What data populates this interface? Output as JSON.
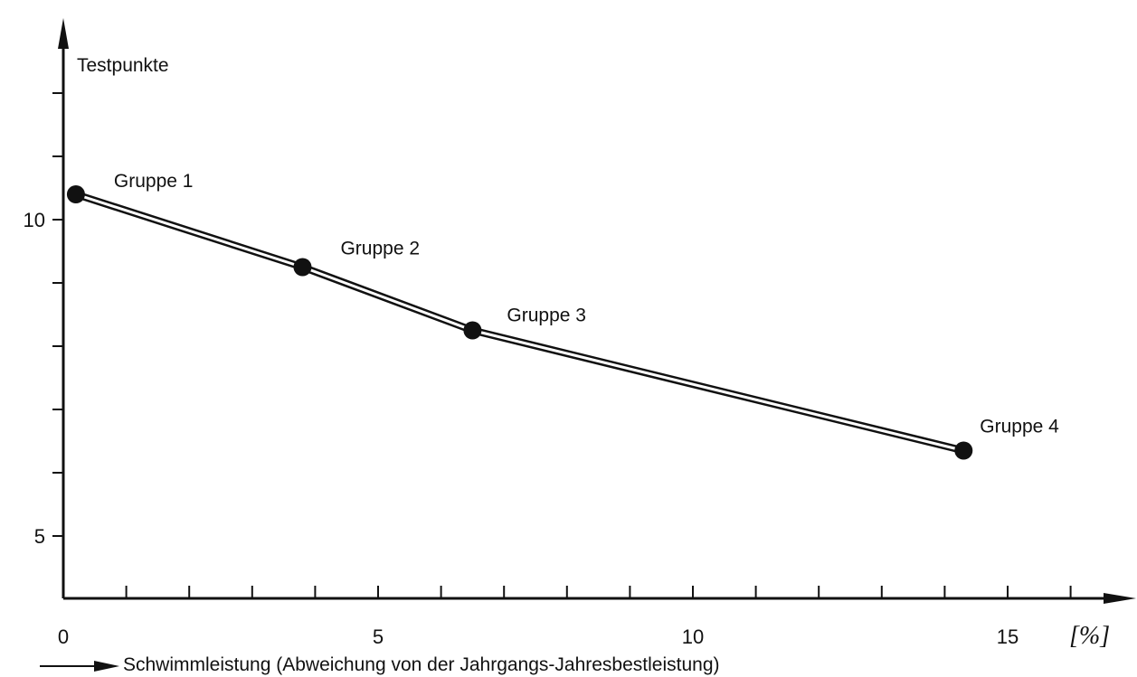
{
  "chart_data": {
    "type": "line",
    "title": "",
    "ylabel": "Testpunkte",
    "xlabel": "Schwimmleistung (Abweichung von der Jahrgangs-Jahresbestleistung)",
    "x_unit": "[%]",
    "xlim": [
      0,
      16.5
    ],
    "ylim": [
      4.5,
      13.2
    ],
    "x_tick_labels": [
      {
        "value": 0,
        "label": "0"
      },
      {
        "value": 5,
        "label": "5"
      },
      {
        "value": 10,
        "label": "10"
      },
      {
        "value": 15,
        "label": "15"
      }
    ],
    "x_minor_ticks": [
      1,
      2,
      3,
      4,
      5,
      6,
      7,
      8,
      9,
      10,
      11,
      12,
      13,
      14,
      15,
      16
    ],
    "y_tick_labels": [
      {
        "value": 5,
        "label": "5"
      },
      {
        "value": 10,
        "label": "10"
      }
    ],
    "y_minor_ticks": [
      5,
      6,
      7,
      8,
      9,
      10,
      11,
      12
    ],
    "grid": false,
    "legend": "none",
    "series": [
      {
        "points": [
          {
            "x": 0.2,
            "y": 10.4,
            "label": "Gruppe 1"
          },
          {
            "x": 3.8,
            "y": 9.25,
            "label": "Gruppe 2"
          },
          {
            "x": 6.5,
            "y": 8.25,
            "label": "Gruppe 3"
          },
          {
            "x": 14.3,
            "y": 6.35,
            "label": "Gruppe 4"
          }
        ]
      }
    ],
    "colors": {
      "ink": "#111111",
      "background": "#ffffff"
    }
  }
}
